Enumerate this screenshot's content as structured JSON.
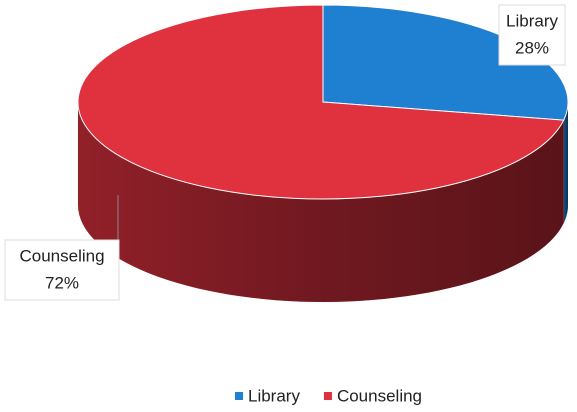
{
  "chart_data": {
    "type": "pie",
    "categories": [
      "Library",
      "Counseling"
    ],
    "values": [
      28,
      72
    ],
    "value_labels": [
      "28%",
      "72%"
    ],
    "colors": [
      "#1f7fd1",
      "#e0313f"
    ],
    "legend": "bottom"
  }
}
